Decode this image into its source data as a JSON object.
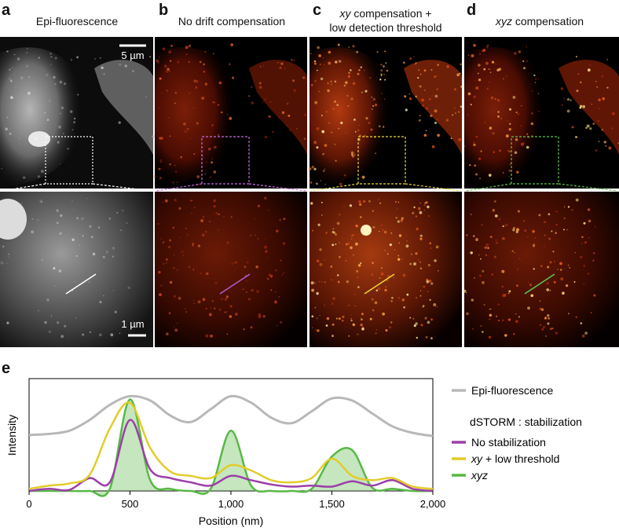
{
  "panels": [
    {
      "letter": "a",
      "title_plain": "Epi-fluorescence",
      "title_italic": "",
      "title_rest": "",
      "title_line2": "",
      "style": "epi",
      "zoom_color": "#ffffff",
      "line_color": "#ffffff"
    },
    {
      "letter": "b",
      "title_plain": "No drift compensation",
      "title_italic": "",
      "title_rest": "",
      "title_line2": "",
      "style": "storm-sparse",
      "zoom_color": "#c46be0",
      "line_color": "#b05cc9"
    },
    {
      "letter": "c",
      "title_plain": "",
      "title_italic": "xy",
      "title_rest": " compensation +",
      "title_line2": "low detection threshold",
      "style": "storm-dense",
      "zoom_color": "#e8d53a",
      "line_color": "#e8d53a"
    },
    {
      "letter": "d",
      "title_plain": "",
      "title_italic": "xyz",
      "title_rest": " compensation",
      "title_line2": "",
      "style": "storm-sharp",
      "zoom_color": "#5fc34b",
      "line_color": "#5fc34b"
    }
  ],
  "scalebars": {
    "top": "5 µm",
    "bottom": "1 µm"
  },
  "chart_data": {
    "type": "line",
    "panel_letter": "e",
    "xlabel": "Position (nm)",
    "ylabel": "Intensity",
    "xlim": [
      0,
      2000
    ],
    "ylim": [
      0,
      1
    ],
    "xticks": [
      0,
      500,
      1000,
      1500,
      2000
    ],
    "xtick_labels": [
      "0",
      "500",
      "1,000",
      "1,500",
      "2,000"
    ],
    "x": [
      0,
      100,
      200,
      300,
      400,
      500,
      600,
      700,
      800,
      900,
      1000,
      1100,
      1200,
      1300,
      1400,
      1500,
      1600,
      1700,
      1800,
      1900,
      2000
    ],
    "series": [
      {
        "name": "Epi-fluorescence",
        "color": "#b8b8b8",
        "values": [
          0.52,
          0.53,
          0.56,
          0.66,
          0.8,
          0.88,
          0.84,
          0.7,
          0.64,
          0.76,
          0.88,
          0.82,
          0.68,
          0.63,
          0.74,
          0.86,
          0.84,
          0.72,
          0.6,
          0.54,
          0.51
        ]
      },
      {
        "name": "No stabilization",
        "color": "#9b3fa8",
        "values": [
          0.0,
          0.02,
          0.01,
          0.12,
          0.08,
          0.66,
          0.2,
          0.12,
          0.08,
          0.05,
          0.14,
          0.1,
          0.06,
          0.04,
          0.05,
          0.04,
          0.09,
          0.05,
          0.1,
          0.02,
          0.0
        ]
      },
      {
        "name": "xy + low threshold",
        "color": "#e2cc2a",
        "values": [
          0.02,
          0.05,
          0.07,
          0.15,
          0.58,
          0.82,
          0.4,
          0.18,
          0.14,
          0.12,
          0.24,
          0.19,
          0.1,
          0.08,
          0.12,
          0.3,
          0.14,
          0.1,
          0.12,
          0.04,
          0.02
        ]
      },
      {
        "name": "xyz",
        "color": "#58b846",
        "values": [
          0.0,
          0.0,
          0.0,
          0.0,
          0.02,
          0.85,
          0.1,
          0.02,
          0.0,
          0.02,
          0.56,
          0.05,
          0.0,
          0.0,
          0.02,
          0.32,
          0.38,
          0.03,
          0.02,
          0.0,
          0.0
        ]
      }
    ],
    "legend": {
      "epi_label": "Epi-fluorescence",
      "group_title": "dSTORM : stabilization",
      "nostab_label": "No stabilization",
      "xy_italic": "xy",
      "xy_rest": " + low threshold",
      "xyz_label": "xyz",
      "placement": "right"
    }
  }
}
